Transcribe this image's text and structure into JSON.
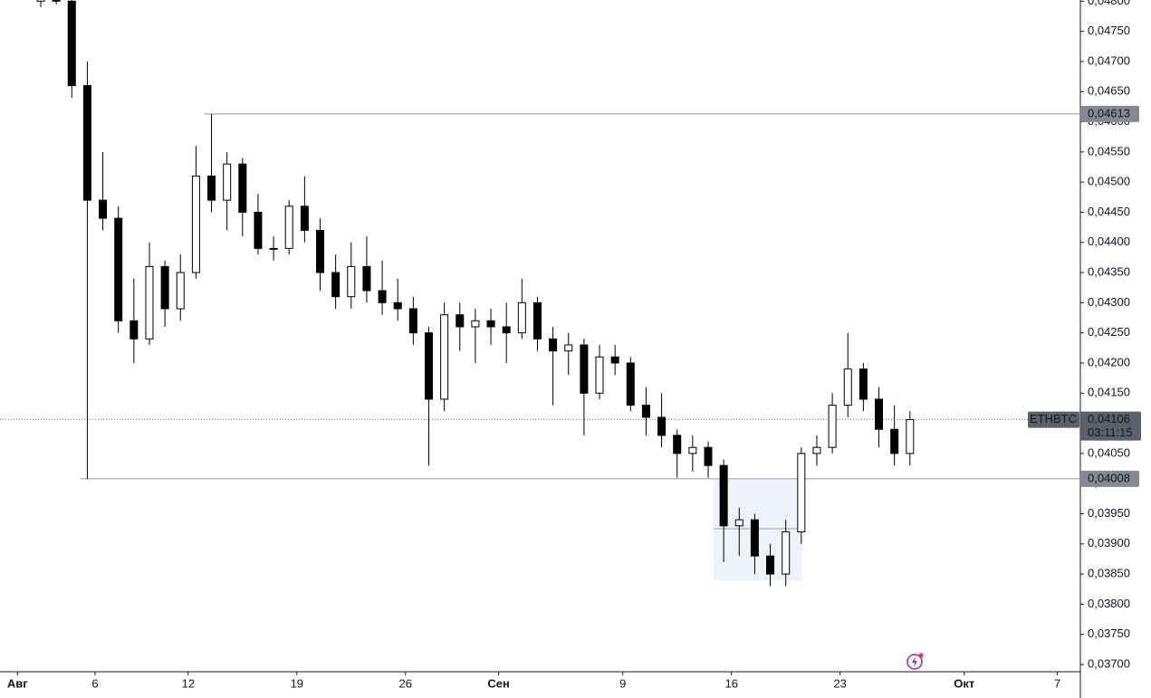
{
  "chart_data": {
    "type": "candlestick",
    "symbol": "ETHBTC",
    "countdown": "03:11:15",
    "up_color": "#ffffff",
    "down_color": "#000000",
    "wick_color": "#000000",
    "x": [
      1.5,
      2.5,
      3.5,
      4.5,
      5.5,
      6.5,
      7.5,
      8.5,
      9.5,
      10.5,
      11.5,
      12.5,
      13.5,
      14.5,
      15.5,
      16.5,
      17.5,
      18.5,
      19.5,
      20.5,
      21.5,
      22.5,
      23.5,
      24.5,
      25.5,
      26.5,
      27.5,
      28.5,
      29.5,
      30.5,
      31.5,
      32.5,
      33.5,
      34.5,
      35.5,
      36.5,
      37.5,
      38.5,
      39.5,
      40.5,
      41.5,
      42.5,
      43.5,
      44.5,
      45.5,
      46.5,
      47.5,
      48.5,
      49.5,
      50.5,
      51.5,
      52.5,
      53.5,
      54.5,
      55.5,
      56.5,
      57.5
    ],
    "open": [
      0.048,
      0.04805,
      0.048,
      0.0466,
      0.0447,
      0.0444,
      0.0427,
      0.0424,
      0.0436,
      0.0429,
      0.0435,
      0.0451,
      0.0447,
      0.0453,
      0.0445,
      0.0439,
      0.0439,
      0.0446,
      0.0442,
      0.0435,
      0.0431,
      0.0436,
      0.0432,
      0.043,
      0.0429,
      0.0425,
      0.0414,
      0.0428,
      0.0426,
      0.0427,
      0.0426,
      0.0425,
      0.043,
      0.0424,
      0.0422,
      0.0423,
      0.0415,
      0.0421,
      0.042,
      0.0413,
      0.0411,
      0.0408,
      0.0405,
      0.0406,
      0.0403,
      0.0393,
      0.0394,
      0.0388,
      0.0385,
      0.0392,
      0.0405,
      0.0406,
      0.0413,
      0.0419,
      0.0414,
      0.0409,
      0.0405
    ],
    "high": [
      0.04815,
      0.04815,
      0.04805,
      0.047,
      0.0455,
      0.0446,
      0.0434,
      0.044,
      0.0437,
      0.0438,
      0.0456,
      0.04613,
      0.0455,
      0.0454,
      0.0448,
      0.0441,
      0.0447,
      0.0451,
      0.0444,
      0.0438,
      0.044,
      0.0441,
      0.0437,
      0.0434,
      0.0431,
      0.0426,
      0.043,
      0.043,
      0.0429,
      0.0429,
      0.043,
      0.0434,
      0.0431,
      0.0426,
      0.0425,
      0.0424,
      0.0423,
      0.0423,
      0.0421,
      0.0416,
      0.0415,
      0.0409,
      0.0408,
      0.0407,
      0.0404,
      0.0396,
      0.0395,
      0.039,
      0.0394,
      0.0406,
      0.0408,
      0.0415,
      0.0425,
      0.042,
      0.0416,
      0.0413,
      0.0412
    ],
    "low": [
      0.0479,
      0.04795,
      0.0464,
      0.04008,
      0.0442,
      0.0425,
      0.042,
      0.0423,
      0.0426,
      0.0427,
      0.0434,
      0.0445,
      0.0442,
      0.0441,
      0.0438,
      0.0437,
      0.0438,
      0.044,
      0.0432,
      0.0429,
      0.0429,
      0.043,
      0.0428,
      0.0427,
      0.0423,
      0.0403,
      0.0412,
      0.0422,
      0.042,
      0.0423,
      0.042,
      0.0424,
      0.0422,
      0.0413,
      0.0418,
      0.0408,
      0.0414,
      0.0418,
      0.0412,
      0.0408,
      0.0406,
      0.0401,
      0.0402,
      0.0401,
      0.0387,
      0.0388,
      0.0385,
      0.0383,
      0.0383,
      0.039,
      0.0403,
      0.0405,
      0.0411,
      0.0412,
      0.0406,
      0.0403,
      0.0403
    ],
    "close": [
      0.04805,
      0.048,
      0.0466,
      0.0447,
      0.0444,
      0.0427,
      0.0424,
      0.0436,
      0.0429,
      0.0435,
      0.0451,
      0.0447,
      0.0453,
      0.0445,
      0.0439,
      0.0439,
      0.0446,
      0.0442,
      0.0435,
      0.0431,
      0.0436,
      0.0432,
      0.043,
      0.0429,
      0.0425,
      0.0414,
      0.0428,
      0.0426,
      0.0427,
      0.0426,
      0.0425,
      0.043,
      0.0424,
      0.0422,
      0.0423,
      0.0415,
      0.0421,
      0.042,
      0.0413,
      0.0411,
      0.0408,
      0.0405,
      0.0406,
      0.0403,
      0.0393,
      0.0394,
      0.0388,
      0.0385,
      0.0392,
      0.0405,
      0.0406,
      0.0413,
      0.0419,
      0.0414,
      0.0409,
      0.0405,
      0.04106
    ],
    "xlim": [
      -1.126,
      68.48
    ],
    "xticks": [
      {
        "value": 0,
        "label": "Авг"
      },
      {
        "value": 5,
        "label": "6"
      },
      {
        "value": 11,
        "label": "12"
      },
      {
        "value": 18,
        "label": "19"
      },
      {
        "value": 25,
        "label": "26"
      },
      {
        "value": 31,
        "label": "Сен"
      },
      {
        "value": 39,
        "label": "9"
      },
      {
        "value": 46,
        "label": "16"
      },
      {
        "value": 53,
        "label": "23"
      },
      {
        "value": 61,
        "label": "Окт"
      },
      {
        "value": 67,
        "label": "7"
      }
    ],
    "ylim": [
      0.03688,
      0.04802
    ],
    "yticks": [
      {
        "value": 0.037,
        "label": "0,03700"
      },
      {
        "value": 0.0375,
        "label": "0,03750"
      },
      {
        "value": 0.038,
        "label": "0,03800"
      },
      {
        "value": 0.0385,
        "label": "0,03850"
      },
      {
        "value": 0.039,
        "label": "0,03900"
      },
      {
        "value": 0.0395,
        "label": "0,03950"
      },
      {
        "value": 0.04,
        "label": "0,04000"
      },
      {
        "value": 0.0405,
        "label": "0,04050"
      },
      {
        "value": 0.041,
        "label": "0,04100"
      },
      {
        "value": 0.0415,
        "label": "0,04150"
      },
      {
        "value": 0.042,
        "label": "0,04200"
      },
      {
        "value": 0.0425,
        "label": "0,04250"
      },
      {
        "value": 0.043,
        "label": "0,04300"
      },
      {
        "value": 0.0435,
        "label": "0,04350"
      },
      {
        "value": 0.044,
        "label": "0,04400"
      },
      {
        "value": 0.0445,
        "label": "0,04450"
      },
      {
        "value": 0.045,
        "label": "0,04500"
      },
      {
        "value": 0.0455,
        "label": "0,04550"
      },
      {
        "value": 0.046,
        "label": "0,04600"
      },
      {
        "value": 0.0465,
        "label": "0,04650"
      },
      {
        "value": 0.047,
        "label": "0,04700"
      },
      {
        "value": 0.0475,
        "label": "0,04750"
      },
      {
        "value": 0.048,
        "label": "0,04800"
      }
    ],
    "lines": [
      {
        "value": 0.04613,
        "label": "0,04613"
      },
      {
        "value": 0.04008,
        "label": "0,04008"
      }
    ],
    "last_price": {
      "value": 0.04106,
      "label": "0,04106"
    }
  }
}
